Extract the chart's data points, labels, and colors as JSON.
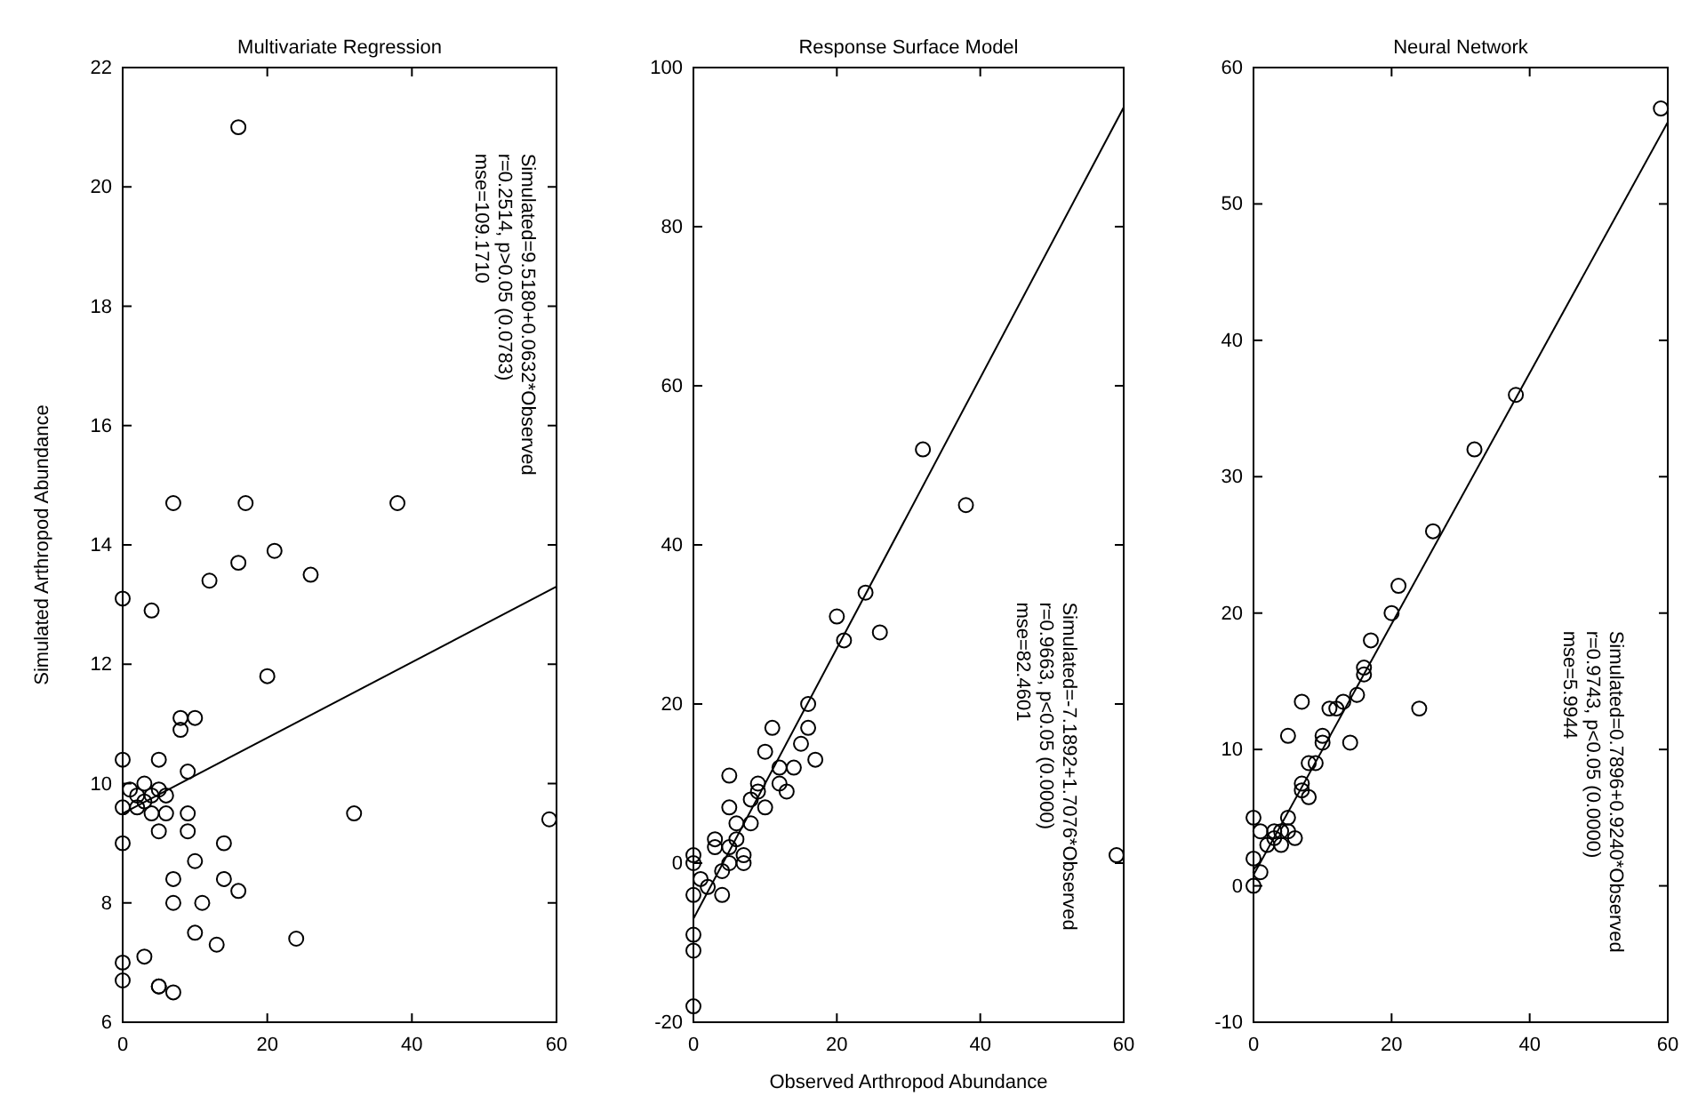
{
  "chart_data": [
    {
      "type": "scatter",
      "title": "Multivariate Regression",
      "ylabel": "Simulated Arthropod Abundance",
      "xlim": [
        0,
        60
      ],
      "ylim": [
        6,
        22
      ],
      "xticks": [
        0,
        20,
        40,
        60
      ],
      "yticks": [
        6,
        8,
        10,
        12,
        14,
        16,
        18,
        20,
        22
      ],
      "grid": false,
      "marker": "circle",
      "annotations": [
        "Simulated=9.5180+0.0632*Observed",
        "r=0.2514, p>0.05 (0.0783)",
        "mse=109.1710"
      ],
      "series": [
        {
          "type": "scatter",
          "color": "#000000",
          "x": [
            0,
            0,
            0,
            0,
            0,
            0,
            1,
            2,
            2,
            3,
            3,
            3,
            4,
            4,
            4,
            5,
            5,
            5,
            5,
            5,
            6,
            6,
            7,
            7,
            7,
            7,
            8,
            8,
            9,
            9,
            9,
            10,
            10,
            10,
            11,
            12,
            13,
            14,
            14,
            16,
            16,
            16,
            17,
            20,
            21,
            24,
            26,
            32,
            38,
            59
          ],
          "values": [
            13.1,
            10.4,
            9.6,
            9.0,
            7.0,
            6.7,
            9.9,
            9.8,
            9.6,
            10.0,
            9.7,
            7.1,
            12.9,
            9.5,
            9.8,
            10.4,
            9.9,
            9.2,
            6.6,
            6.6,
            9.8,
            9.5,
            14.7,
            8.4,
            8.0,
            6.5,
            10.9,
            11.1,
            10.2,
            9.5,
            9.2,
            11.1,
            8.7,
            7.5,
            8.0,
            13.4,
            7.3,
            9.0,
            8.4,
            13.7,
            8.2,
            21.0,
            14.7,
            11.8,
            13.9,
            7.4,
            13.5,
            9.5,
            14.7,
            9.4
          ]
        },
        {
          "type": "line",
          "color": "#000000",
          "marker": "none",
          "x": [
            0,
            60
          ],
          "values": [
            9.5,
            13.3
          ]
        }
      ]
    },
    {
      "type": "scatter",
      "title": "Response Surface Model",
      "xlabel": "Observed Arthropod Abundance",
      "xlim": [
        0,
        60
      ],
      "ylim": [
        -20,
        100
      ],
      "xticks": [
        0,
        20,
        40,
        60
      ],
      "yticks": [
        -20,
        0,
        20,
        40,
        60,
        80,
        100
      ],
      "grid": false,
      "marker": "circle",
      "annotations": [
        "Simulated=-7.1892+1.7076*Observed",
        "r=0.9663, p<0.05 (0.0000)",
        "mse=82.4601"
      ],
      "series": [
        {
          "type": "scatter",
          "color": "#000000",
          "x": [
            0,
            0,
            0,
            0,
            0,
            0,
            1,
            2,
            3,
            3,
            4,
            4,
            5,
            5,
            5,
            5,
            6,
            6,
            7,
            7,
            8,
            8,
            9,
            9,
            10,
            10,
            11,
            12,
            12,
            13,
            14,
            15,
            16,
            16,
            17,
            20,
            21,
            24,
            26,
            32,
            38,
            59
          ],
          "values": [
            -18,
            -11,
            -9,
            -4,
            0,
            1,
            -2,
            -3,
            2,
            3,
            -1,
            -4,
            0,
            2,
            7,
            11,
            3,
            5,
            0,
            1,
            5,
            8,
            10,
            9,
            7,
            14,
            17,
            12,
            10,
            9,
            12,
            15,
            17,
            20,
            13,
            31,
            28,
            34,
            29,
            52,
            45,
            1
          ]
        },
        {
          "type": "line",
          "color": "#000000",
          "marker": "none",
          "x": [
            0,
            60
          ],
          "values": [
            -7,
            95
          ]
        }
      ]
    },
    {
      "type": "scatter",
      "title": "Neural Network",
      "xlim": [
        0,
        60
      ],
      "ylim": [
        -10,
        60
      ],
      "xticks": [
        0,
        20,
        40,
        60
      ],
      "yticks": [
        -10,
        0,
        10,
        20,
        30,
        40,
        50,
        60
      ],
      "grid": false,
      "marker": "circle",
      "annotations": [
        "Simulated=0.7896+0.9240*Observed",
        "r=0.9743, p<0.05 (0.0000)",
        "mse=5.9944"
      ],
      "series": [
        {
          "type": "scatter",
          "color": "#000000",
          "x": [
            0,
            0,
            0,
            1,
            1,
            2,
            3,
            3,
            4,
            4,
            5,
            5,
            5,
            6,
            7,
            7,
            7,
            8,
            8,
            9,
            10,
            10,
            11,
            12,
            13,
            14,
            15,
            16,
            16,
            17,
            20,
            21,
            24,
            26,
            32,
            38,
            59
          ],
          "values": [
            0,
            2,
            5,
            1,
            4,
            3,
            3.5,
            4,
            3,
            4,
            4,
            5,
            11,
            3.5,
            13.5,
            7,
            7.5,
            6.5,
            9,
            9,
            11,
            10.5,
            13,
            13,
            13.5,
            10.5,
            14,
            16,
            15.5,
            18,
            20,
            22,
            13,
            26,
            32,
            36,
            57
          ]
        },
        {
          "type": "line",
          "color": "#000000",
          "marker": "none",
          "x": [
            0,
            60
          ],
          "values": [
            0.8,
            56
          ]
        }
      ]
    }
  ]
}
